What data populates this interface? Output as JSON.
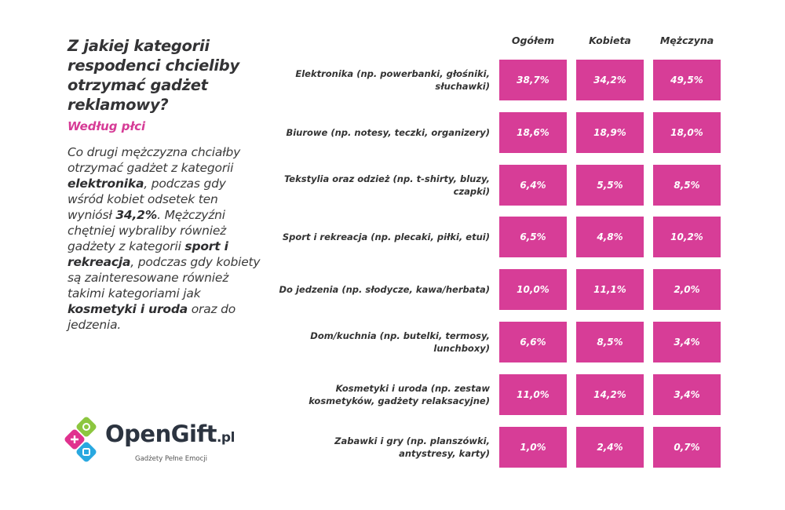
{
  "left_panel": {
    "title": "Z jakiej kategorii respodenci chcieliby otrzymać gadżet reklamowy?",
    "subtitle": "Według płci",
    "description_parts": [
      {
        "text": "Co drugi mężczyzna chciałby otrzymać gadżet z kategorii ",
        "bold": false
      },
      {
        "text": "elektronika",
        "bold": true
      },
      {
        "text": ", podczas gdy wśród kobiet odsetek ten wyniósł ",
        "bold": false
      },
      {
        "text": "34,2%",
        "bold": true
      },
      {
        "text": ". Mężczyźni chętniej wybraliby również gadżety z kategorii ",
        "bold": false
      },
      {
        "text": "sport i rekreacja",
        "bold": true
      },
      {
        "text": ", podczas gdy kobiety są zainteresowane również takimi kategoriami jak ",
        "bold": false
      },
      {
        "text": "kosmetyki i uroda",
        "bold": true
      },
      {
        "text": " oraz do jedzenia.",
        "bold": false
      }
    ]
  },
  "logo": {
    "name": "OpenGift",
    "tld": ".pl",
    "tagline": "Gadżety Pełne Emocji",
    "colors": {
      "pink": "#e0318e",
      "green": "#8cc63f",
      "blue": "#29a8e0",
      "text": "#2c3440"
    }
  },
  "colors": {
    "cell": "#d73d97",
    "accent": "#d63b96"
  },
  "chart_data": {
    "type": "table",
    "title": "Z jakiej kategorii respodenci chcieliby otrzymać gadżet reklamowy?",
    "subtitle": "Według płci",
    "columns": [
      "Ogółem",
      "Kobieta",
      "Mężczyna"
    ],
    "rows": [
      {
        "label": "Elektronika (np. powerbanki, głośniki, słuchawki)",
        "values": [
          "38,7%",
          "34,2%",
          "49,5%"
        ]
      },
      {
        "label": "Biurowe (np. notesy, teczki, organizery)",
        "values": [
          "18,6%",
          "18,9%",
          "18,0%"
        ]
      },
      {
        "label": "Tekstylia oraz odzież (np. t-shirty, bluzy, czapki)",
        "values": [
          "6,4%",
          "5,5%",
          "8,5%"
        ]
      },
      {
        "label": "Sport i rekreacja (np. plecaki, piłki, etui)",
        "values": [
          "6,5%",
          "4,8%",
          "10,2%"
        ]
      },
      {
        "label": "Do jedzenia (np. słodycze, kawa/herbata)",
        "values": [
          "10,0%",
          "11,1%",
          "2,0%"
        ]
      },
      {
        "label": "Dom/kuchnia (np. butelki, termosy, lunchboxy)",
        "values": [
          "6,6%",
          "8,5%",
          "3,4%"
        ]
      },
      {
        "label": "Kosmetyki i uroda (np. zestaw kosmetyków, gadżety relaksacyjne)",
        "values": [
          "11,0%",
          "14,2%",
          "3,4%"
        ]
      },
      {
        "label": "Zabawki i gry (np. planszówki, antystresy, karty)",
        "values": [
          "1,0%",
          "2,4%",
          "0,7%"
        ]
      }
    ]
  }
}
